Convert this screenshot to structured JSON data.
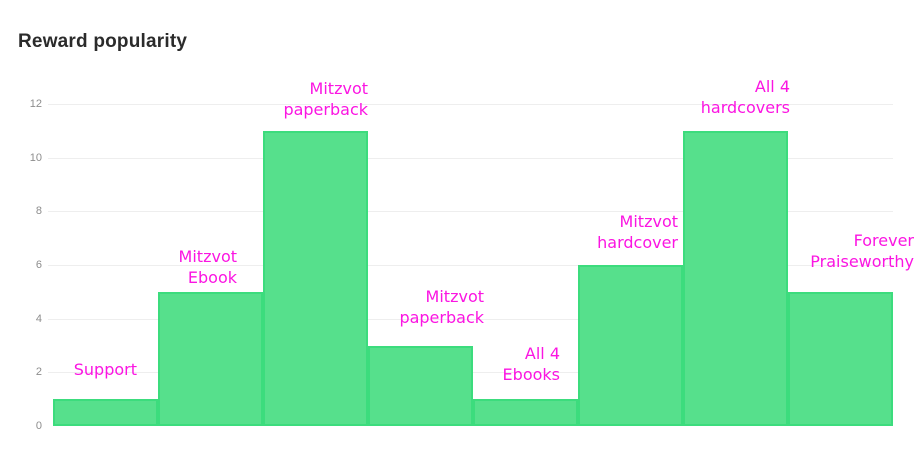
{
  "header": {
    "title": "Reward popularity"
  },
  "colors": {
    "bar_fill": "#56E08C",
    "bar_border": "#3CDC7D",
    "bar_label": "#FB15E2",
    "axis_tick": "#8D8D8D",
    "gridline": "#EEEEEE",
    "title": "#2B2B2B",
    "background": "#FFFFFF"
  },
  "chart_data": {
    "type": "bar",
    "title": "Reward popularity",
    "categories": [
      "Support",
      "Mitzvot Ebook",
      "Mitzvot paperback",
      "Mitzvot paperback",
      "All 4 Ebooks",
      "Mitzvot hardcover",
      "All 4 hardcovers",
      "Forever Praiseworthy"
    ],
    "values": [
      1,
      5,
      11,
      3,
      1,
      6,
      11,
      5
    ],
    "label_lines": [
      [
        "Support"
      ],
      [
        "Mitzvot",
        "Ebook"
      ],
      [
        "Mitzvot",
        "paperback"
      ],
      [
        "Mitzvot",
        "paperback"
      ],
      [
        "All 4",
        "Ebooks"
      ],
      [
        "Mitzvot",
        "hardcover"
      ],
      [
        "All 4",
        "hardcovers"
      ],
      [
        "Forever",
        "Praiseworthy"
      ]
    ],
    "xlabel": "",
    "ylabel": "",
    "ylim": [
      0,
      12
    ],
    "yticks": [
      0,
      2,
      4,
      6,
      8,
      10,
      12
    ],
    "gridlines_at": [
      2,
      4,
      6,
      8,
      10,
      12
    ],
    "grid": true,
    "legend": false,
    "bar_gap": 0
  }
}
